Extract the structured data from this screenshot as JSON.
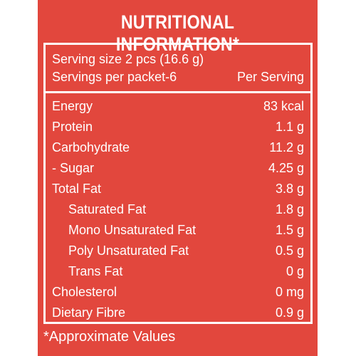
{
  "label": {
    "title": "NUTRITIONAL INFORMATION*",
    "serving_size": "Serving size 2 pcs (16.6 g)",
    "servings_per_packet": "Servings per packet-6",
    "per_serving_header": "Per Serving",
    "nutrients": [
      {
        "name": "Energy",
        "value": "83 kcal"
      },
      {
        "name": "Protein",
        "value": "1.1 g"
      },
      {
        "name": "Carbohydrate",
        "value": "11.2 g"
      },
      {
        "name": "- Sugar",
        "value": "4.25 g"
      },
      {
        "name": "Total Fat",
        "value": "3.8 g"
      },
      {
        "name": "Saturated Fat",
        "value": "1.8 g"
      },
      {
        "name": "Mono Unsaturated Fat",
        "value": "1.5 g"
      },
      {
        "name": "Poly Unsaturated Fat",
        "value": "0.5 g"
      },
      {
        "name": "Trans Fat",
        "value": "0 g"
      },
      {
        "name": "Cholesterol",
        "value": "0 mg"
      },
      {
        "name": "Dietary Fibre",
        "value": "0.9 g"
      }
    ],
    "footnote": "*Approximate Values"
  },
  "colors": {
    "background": "#e2473d",
    "text": "#ffffff"
  }
}
